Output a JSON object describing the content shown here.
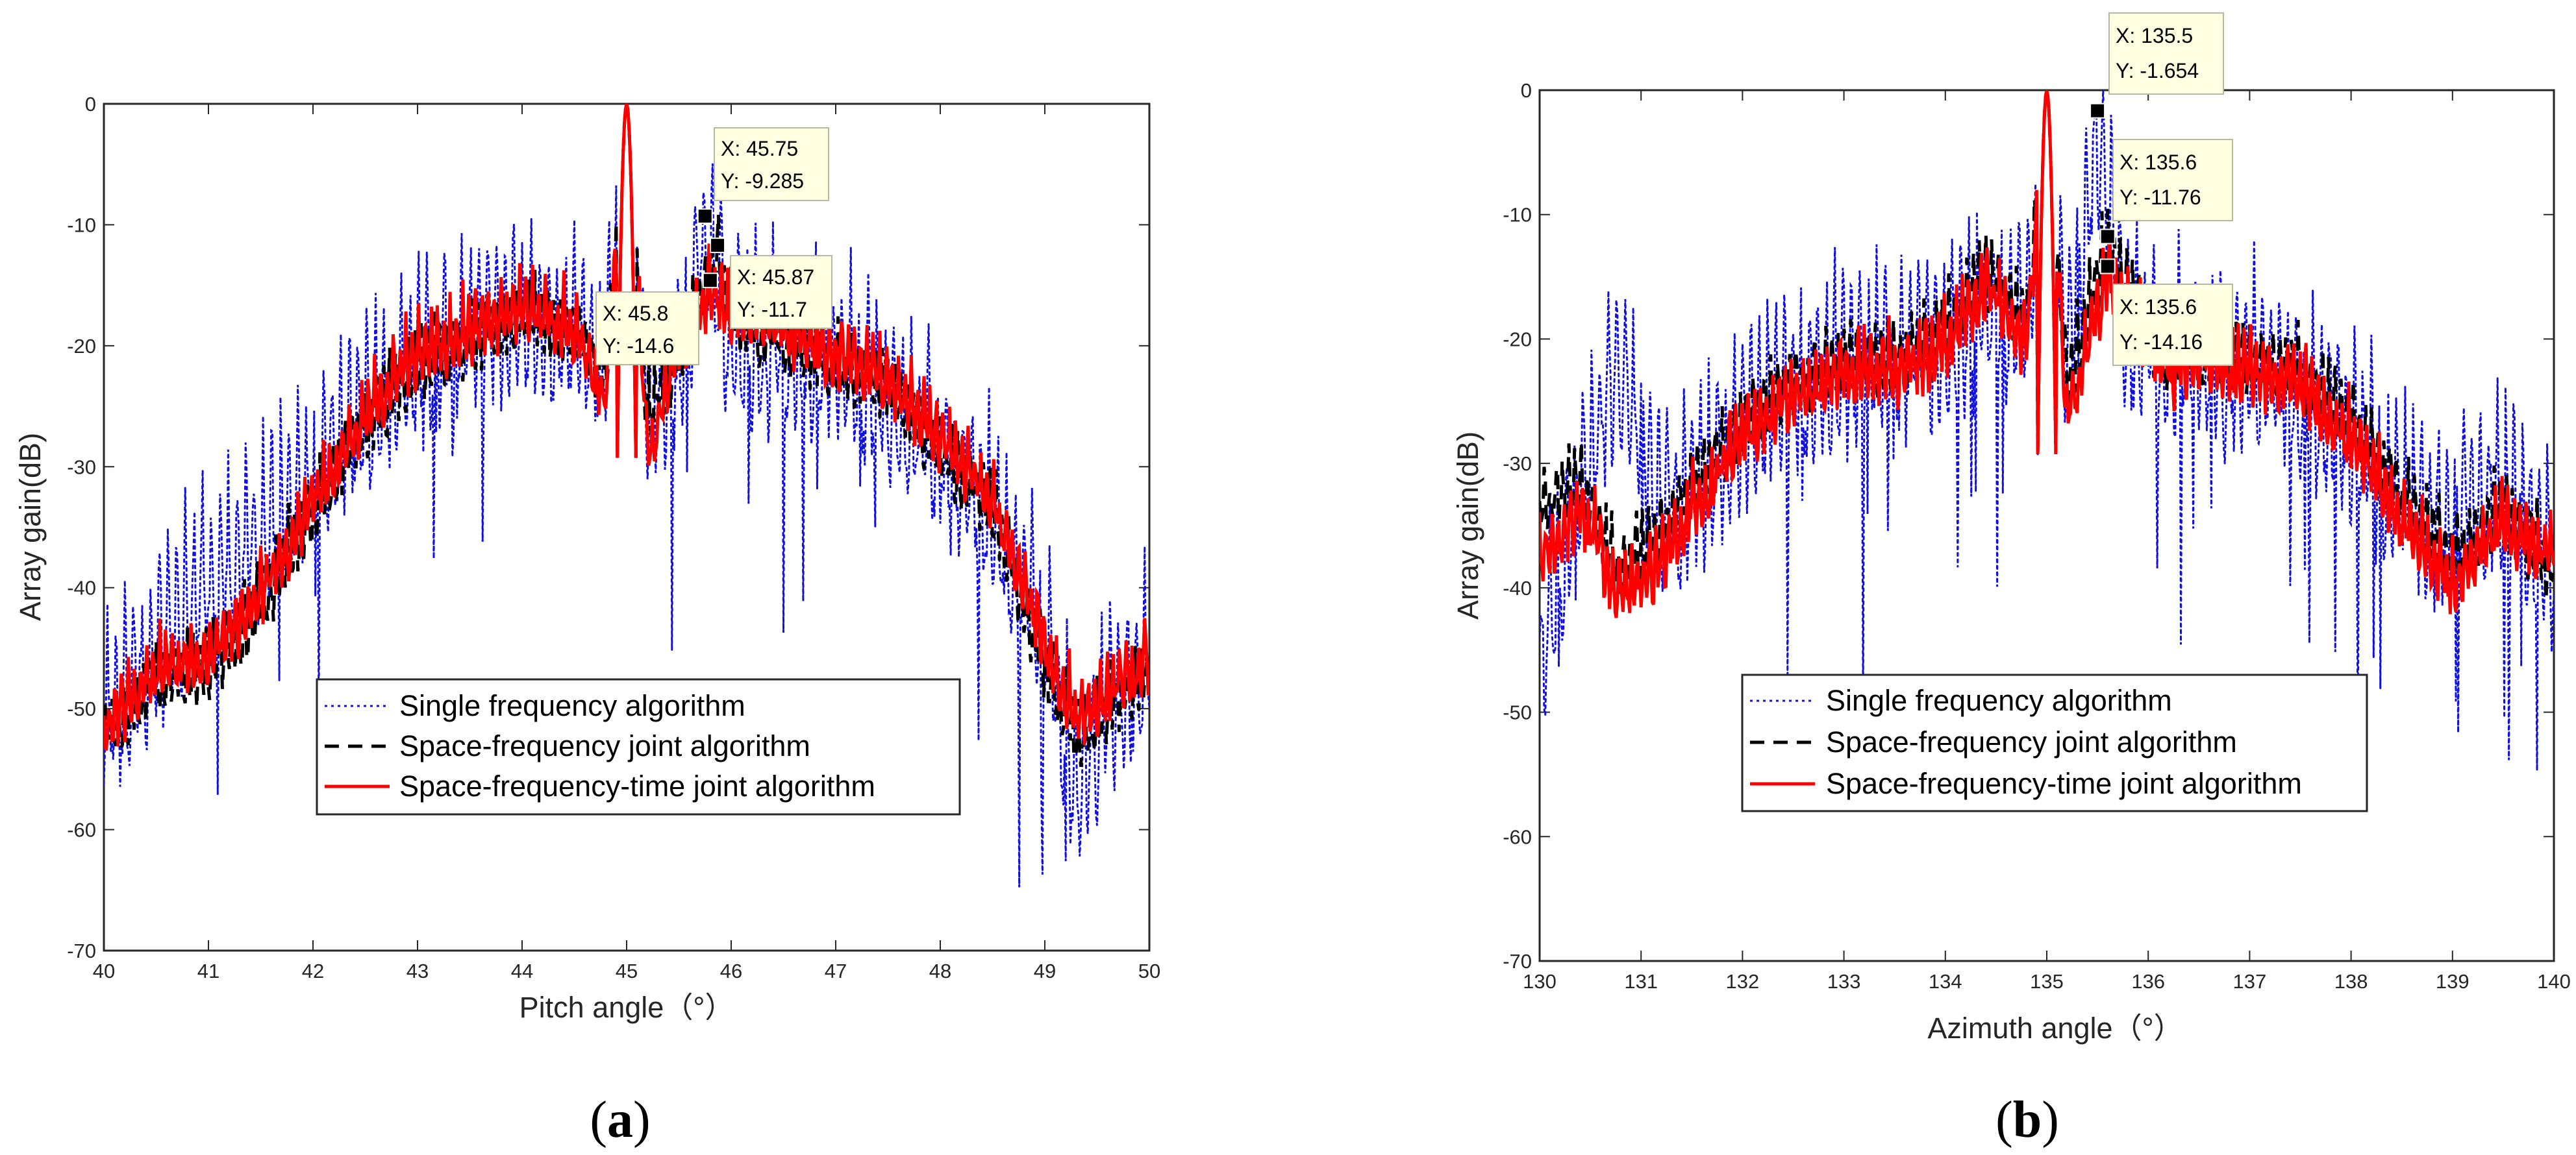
{
  "colors": {
    "single": "#1010e0",
    "space_frequency": "#000000",
    "space_frequency_time": "#ff0000",
    "datatip_bg": "#ffffe1",
    "axes": "#262626"
  },
  "legend": {
    "items": [
      "Single frequency algorithm",
      "Space-frequency joint algorithm",
      "Space-frequency-time joint algorithm"
    ]
  },
  "chart_data": [
    {
      "type": "line",
      "panel_label": "(a)",
      "panel_letter": "a",
      "xlabel": "Pitch angle（°）",
      "ylabel": "Array gain(dB)",
      "xlim": [
        40,
        50
      ],
      "ylim": [
        -70,
        0
      ],
      "xticks": [
        "40",
        "41",
        "42",
        "43",
        "44",
        "45",
        "46",
        "47",
        "48",
        "49",
        "50"
      ],
      "yticks": [
        "0",
        "-10",
        "-20",
        "-30",
        "-40",
        "-50",
        "-60",
        "-70"
      ],
      "peak": 45,
      "legend_position": "lower-center",
      "series": [
        {
          "name": "Single frequency algorithm",
          "style": "dotted",
          "color": "#1010e0",
          "points": [
            [
              40,
              -50
            ],
            [
              40.3,
              -46
            ],
            [
              40.6,
              -42
            ],
            [
              41,
              -38
            ],
            [
              41.5,
              -34
            ],
            [
              42,
              -29
            ],
            [
              42.5,
              -24
            ],
            [
              43,
              -20
            ],
            [
              43.5,
              -17
            ],
            [
              44,
              -16
            ],
            [
              44.5,
              -18
            ],
            [
              44.8,
              -20
            ],
            [
              45,
              0
            ],
            [
              45.2,
              -22
            ],
            [
              45.5,
              -20
            ],
            [
              45.75,
              -9.3
            ],
            [
              46,
              -18
            ],
            [
              46.5,
              -19
            ],
            [
              47,
              -20
            ],
            [
              47.5,
              -23
            ],
            [
              48,
              -27
            ],
            [
              48.5,
              -33
            ],
            [
              49,
              -42
            ],
            [
              49.3,
              -55
            ],
            [
              49.6,
              -48
            ],
            [
              50,
              -45
            ]
          ]
        },
        {
          "name": "Space-frequency joint algorithm",
          "style": "dashed",
          "color": "#000000",
          "points": [
            [
              40,
              -52
            ],
            [
              40.5,
              -47
            ],
            [
              41,
              -46
            ],
            [
              41.5,
              -41
            ],
            [
              42,
              -33
            ],
            [
              42.5,
              -26
            ],
            [
              43,
              -21
            ],
            [
              43.5,
              -19
            ],
            [
              44,
              -17
            ],
            [
              44.5,
              -18
            ],
            [
              44.8,
              -22
            ],
            [
              45,
              0
            ],
            [
              45.2,
              -25
            ],
            [
              45.5,
              -20
            ],
            [
              45.87,
              -11.7
            ],
            [
              46,
              -17
            ],
            [
              46.5,
              -19
            ],
            [
              47,
              -21
            ],
            [
              47.5,
              -23
            ],
            [
              48,
              -28
            ],
            [
              48.5,
              -33
            ],
            [
              49,
              -46
            ],
            [
              49.3,
              -52
            ],
            [
              49.6,
              -49
            ],
            [
              50,
              -46
            ]
          ]
        },
        {
          "name": "Space-frequency-time joint algorithm",
          "style": "solid",
          "color": "#ff0000",
          "points": [
            [
              40,
              -51
            ],
            [
              40.5,
              -46
            ],
            [
              41,
              -45
            ],
            [
              41.5,
              -40
            ],
            [
              42,
              -32
            ],
            [
              42.5,
              -25
            ],
            [
              43,
              -20
            ],
            [
              43.5,
              -18
            ],
            [
              44,
              -16
            ],
            [
              44.5,
              -18
            ],
            [
              44.8,
              -24
            ],
            [
              45,
              0
            ],
            [
              45.2,
              -28
            ],
            [
              45.5,
              -20
            ],
            [
              45.8,
              -14.6
            ],
            [
              46,
              -16
            ],
            [
              46.5,
              -18
            ],
            [
              47,
              -20
            ],
            [
              47.5,
              -22
            ],
            [
              48,
              -27
            ],
            [
              48.5,
              -32
            ],
            [
              49,
              -44
            ],
            [
              49.3,
              -50
            ],
            [
              49.6,
              -48
            ],
            [
              50,
              -45
            ]
          ]
        }
      ],
      "datatips": [
        {
          "x": 45.75,
          "y": -9.285,
          "label_x": "X: 45.75",
          "label_y": "Y: -9.285"
        },
        {
          "x": 45.87,
          "y": -11.7,
          "label_x": "X: 45.87",
          "label_y": "Y: -11.7"
        },
        {
          "x": 45.8,
          "y": -14.6,
          "label_x": "X: 45.8",
          "label_y": "Y: -14.6"
        }
      ]
    },
    {
      "type": "line",
      "panel_label": "(b)",
      "panel_letter": "b",
      "xlabel": "Azimuth angle（°）",
      "ylabel": "Array gain(dB)",
      "xlim": [
        130,
        140
      ],
      "ylim": [
        -70,
        0
      ],
      "xticks": [
        "130",
        "131",
        "132",
        "133",
        "134",
        "135",
        "136",
        "137",
        "138",
        "139",
        "140"
      ],
      "yticks": [
        "0",
        "-10",
        "-20",
        "-30",
        "-40",
        "-50",
        "-60",
        "-70"
      ],
      "peak": 135,
      "legend_position": "lower-center",
      "series": [
        {
          "name": "Single frequency algorithm",
          "style": "dotted",
          "color": "#1010e0",
          "points": [
            [
              130,
              -45
            ],
            [
              130.4,
              -30
            ],
            [
              130.8,
              -20
            ],
            [
              131.2,
              -33
            ],
            [
              131.6,
              -30
            ],
            [
              132,
              -26
            ],
            [
              132.5,
              -22
            ],
            [
              133,
              -21
            ],
            [
              133.5,
              -20
            ],
            [
              134,
              -19
            ],
            [
              134.4,
              -16
            ],
            [
              134.8,
              -17
            ],
            [
              135,
              0
            ],
            [
              135.2,
              -20
            ],
            [
              135.5,
              -1.7
            ],
            [
              135.8,
              -18
            ],
            [
              136.2,
              -20
            ],
            [
              136.6,
              -21
            ],
            [
              137,
              -20
            ],
            [
              137.5,
              -23
            ],
            [
              138,
              -26
            ],
            [
              138.5,
              -32
            ],
            [
              139,
              -33
            ],
            [
              139.5,
              -30
            ],
            [
              140,
              -36
            ]
          ]
        },
        {
          "name": "Space-frequency joint algorithm",
          "style": "dashed",
          "color": "#000000",
          "points": [
            [
              130,
              -33
            ],
            [
              130.4,
              -31
            ],
            [
              130.8,
              -38
            ],
            [
              131.2,
              -35
            ],
            [
              131.6,
              -30
            ],
            [
              132,
              -26
            ],
            [
              132.5,
              -23
            ],
            [
              133,
              -21
            ],
            [
              133.5,
              -21
            ],
            [
              134,
              -19
            ],
            [
              134.4,
              -14
            ],
            [
              134.8,
              -18
            ],
            [
              135,
              0
            ],
            [
              135.2,
              -23
            ],
            [
              135.6,
              -11.76
            ],
            [
              135.8,
              -16
            ],
            [
              136.2,
              -21
            ],
            [
              136.6,
              -20
            ],
            [
              137,
              -21
            ],
            [
              137.5,
              -22
            ],
            [
              138,
              -26
            ],
            [
              138.5,
              -32
            ],
            [
              139,
              -37
            ],
            [
              139.5,
              -33
            ],
            [
              140,
              -38
            ]
          ]
        },
        {
          "name": "Space-frequency-time joint algorithm",
          "style": "solid",
          "color": "#ff0000",
          "points": [
            [
              130,
              -37
            ],
            [
              130.4,
              -33
            ],
            [
              130.8,
              -40
            ],
            [
              131.2,
              -37
            ],
            [
              131.6,
              -32
            ],
            [
              132,
              -27
            ],
            [
              132.5,
              -24
            ],
            [
              133,
              -22
            ],
            [
              133.5,
              -22
            ],
            [
              134,
              -20
            ],
            [
              134.4,
              -15
            ],
            [
              134.8,
              -20
            ],
            [
              135,
              0
            ],
            [
              135.2,
              -26
            ],
            [
              135.6,
              -14.16
            ],
            [
              135.8,
              -17
            ],
            [
              136.2,
              -22
            ],
            [
              136.6,
              -21
            ],
            [
              137,
              -22
            ],
            [
              137.5,
              -23
            ],
            [
              138,
              -27
            ],
            [
              138.5,
              -34
            ],
            [
              139,
              -39
            ],
            [
              139.5,
              -34
            ],
            [
              140,
              -37
            ]
          ]
        }
      ],
      "datatips": [
        {
          "x": 135.5,
          "y": -1.654,
          "label_x": "X: 135.5",
          "label_y": "Y: -1.654"
        },
        {
          "x": 135.6,
          "y": -11.76,
          "label_x": "X: 135.6",
          "label_y": "Y: -11.76"
        },
        {
          "x": 135.6,
          "y": -14.16,
          "label_x": "X: 135.6",
          "label_y": "Y: -14.16"
        }
      ]
    }
  ]
}
